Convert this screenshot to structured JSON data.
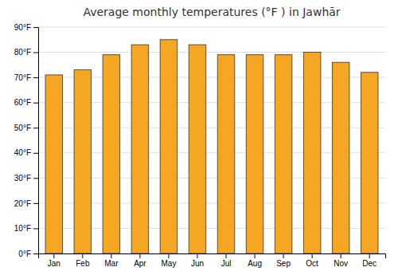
{
  "chart_data": {
    "type": "bar",
    "title": "Average monthly temperatures (°F ) in Jawhār",
    "categories": [
      "Jan",
      "Feb",
      "Mar",
      "Apr",
      "May",
      "Jun",
      "Jul",
      "Aug",
      "Sep",
      "Oct",
      "Nov",
      "Dec"
    ],
    "values": [
      71,
      73,
      79,
      83,
      85,
      83,
      79,
      79,
      79,
      80,
      76,
      72
    ],
    "color": "#F5A623",
    "ylim": [
      0,
      90
    ],
    "yticks": [
      {
        "value": 0,
        "label": "0°F"
      },
      {
        "value": 10,
        "label": "10°F"
      },
      {
        "value": 20,
        "label": "20°F"
      },
      {
        "value": 30,
        "label": "30°F"
      },
      {
        "value": 40,
        "label": "40°F"
      },
      {
        "value": 50,
        "label": "50°F"
      },
      {
        "value": 60,
        "label": "60°F"
      },
      {
        "value": 70,
        "label": "70°F"
      },
      {
        "value": 80,
        "label": "80°F"
      },
      {
        "value": 90,
        "label": "90°F"
      }
    ],
    "grid": true
  }
}
